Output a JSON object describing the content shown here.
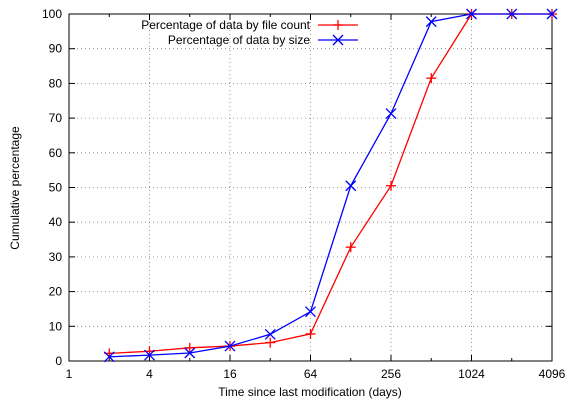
{
  "chart_data": {
    "type": "line",
    "xlabel": "Time since last modification (days)",
    "ylabel": "Cumulative percentage",
    "x_scale": "log2",
    "xlim": [
      1,
      4096
    ],
    "ylim": [
      0,
      100
    ],
    "x_ticks": [
      1,
      4,
      16,
      64,
      256,
      1024,
      4096
    ],
    "x_tick_labels": [
      "1",
      "4",
      "16",
      "64",
      "256",
      "1024",
      "4096"
    ],
    "y_ticks": [
      0,
      10,
      20,
      30,
      40,
      50,
      60,
      70,
      80,
      90,
      100
    ],
    "y_tick_labels": [
      "0",
      "10",
      "20",
      "30",
      "40",
      "50",
      "60",
      "70",
      "80",
      "90",
      "100"
    ],
    "grid": true,
    "legend_position": "top-left",
    "series": [
      {
        "name": "Percentage of data by file count",
        "color": "#ff0000",
        "marker": "plus",
        "x": [
          2,
          4,
          8,
          16,
          32,
          64,
          128,
          256,
          512,
          1024,
          2048,
          4096
        ],
        "y": [
          2.2,
          2.8,
          3.8,
          4.3,
          5.3,
          7.8,
          32.8,
          50.5,
          81.5,
          100,
          100,
          100
        ]
      },
      {
        "name": "Percentage of data by size",
        "color": "#0000ff",
        "marker": "x",
        "x": [
          2,
          4,
          8,
          16,
          32,
          64,
          128,
          256,
          512,
          1024,
          2048,
          4096
        ],
        "y": [
          1.2,
          1.7,
          2.3,
          4.3,
          7.7,
          14.2,
          50.5,
          71.3,
          97.8,
          100,
          100,
          100
        ]
      }
    ]
  }
}
